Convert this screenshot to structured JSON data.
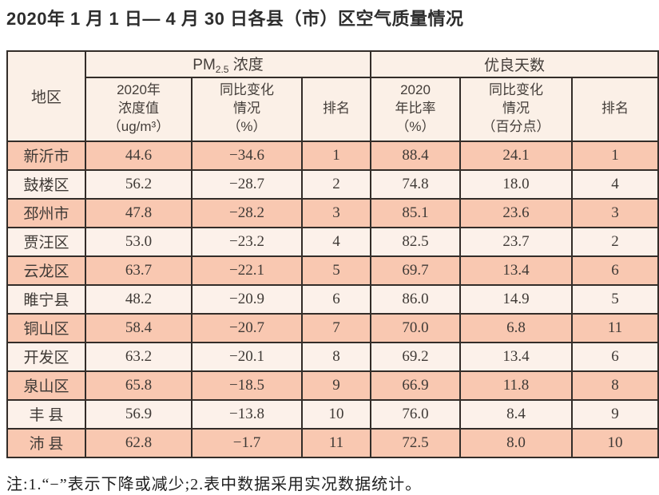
{
  "page": {
    "title": "2020年 1 月 1 日— 4 月 30 日各县（市）区空气质量情况",
    "note": "注:1.“−”表示下降或减少;2.表中数据采用实况数据统计。"
  },
  "colors": {
    "border": "#332d29",
    "header_bg": "#fbf0e7",
    "row_odd_bg": "#f9c8b1",
    "row_even_bg": "#fcf1ea",
    "text": "#433d39"
  },
  "table": {
    "region_header": "地区",
    "pm_group": {
      "main": "PM",
      "sub": "2.5",
      "rest": " 浓度"
    },
    "good_group": "优良天数",
    "subheaders": {
      "pm_value": "2020年\n浓度值\n（ug/m³）",
      "pm_change": "同比变化\n情况\n（%）",
      "pm_rank": "排名",
      "good_rate": "2020\n年比率\n（%）",
      "good_change": "同比变化\n情况\n（百分点）",
      "good_rank": "排名"
    },
    "rows": [
      {
        "region": "新沂市",
        "pm_value": "44.6",
        "pm_change": "−34.6",
        "pm_rank": "1",
        "good_rate": "88.4",
        "good_change": "24.1",
        "good_rank": "1"
      },
      {
        "region": "鼓楼区",
        "pm_value": "56.2",
        "pm_change": "−28.7",
        "pm_rank": "2",
        "good_rate": "74.8",
        "good_change": "18.0",
        "good_rank": "4"
      },
      {
        "region": "邳州市",
        "pm_value": "47.8",
        "pm_change": "−28.2",
        "pm_rank": "3",
        "good_rate": "85.1",
        "good_change": "23.6",
        "good_rank": "3"
      },
      {
        "region": "贾汪区",
        "pm_value": "53.0",
        "pm_change": "−23.2",
        "pm_rank": "4",
        "good_rate": "82.5",
        "good_change": "23.7",
        "good_rank": "2"
      },
      {
        "region": "云龙区",
        "pm_value": "63.7",
        "pm_change": "−22.1",
        "pm_rank": "5",
        "good_rate": "69.7",
        "good_change": "13.4",
        "good_rank": "6"
      },
      {
        "region": "睢宁县",
        "pm_value": "48.2",
        "pm_change": "−20.9",
        "pm_rank": "6",
        "good_rate": "86.0",
        "good_change": "14.9",
        "good_rank": "5"
      },
      {
        "region": "铜山区",
        "pm_value": "58.4",
        "pm_change": "−20.7",
        "pm_rank": "7",
        "good_rate": "70.0",
        "good_change": "6.8",
        "good_rank": "11"
      },
      {
        "region": "开发区",
        "pm_value": "63.2",
        "pm_change": "−20.1",
        "pm_rank": "8",
        "good_rate": "69.2",
        "good_change": "13.4",
        "good_rank": "6"
      },
      {
        "region": "泉山区",
        "pm_value": "65.8",
        "pm_change": "−18.5",
        "pm_rank": "9",
        "good_rate": "66.9",
        "good_change": "11.8",
        "good_rank": "8"
      },
      {
        "region": "丰 县",
        "pm_value": "56.9",
        "pm_change": "−13.8",
        "pm_rank": "10",
        "good_rate": "76.0",
        "good_change": "8.4",
        "good_rank": "9"
      },
      {
        "region": "沛 县",
        "pm_value": "62.8",
        "pm_change": "−1.7",
        "pm_rank": "11",
        "good_rate": "72.5",
        "good_change": "8.0",
        "good_rank": "10"
      }
    ]
  }
}
